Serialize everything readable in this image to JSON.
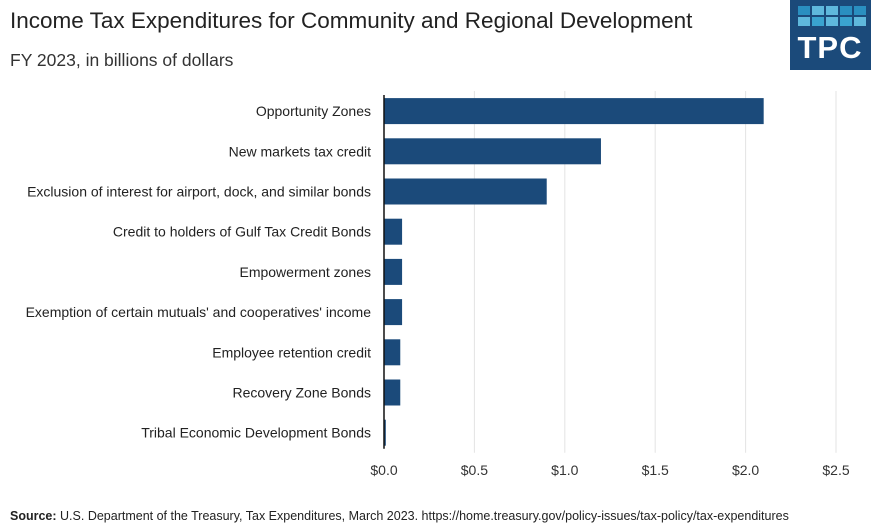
{
  "header": {
    "title": "Income Tax Expenditures for Community and Regional Development",
    "subtitle": "FY 2023, in billions of dollars",
    "logo_text": "TPC"
  },
  "footer": {
    "source_label": "Source:",
    "source_text": "U.S. Department of the Treasury, Tax Expenditures, March 2023. https://home.treasury.gov/policy-issues/tax-policy/tax-expenditures"
  },
  "colors": {
    "bar": "#1b4a7a",
    "grid": "#e3e3e3",
    "logo_bg": "#1b4a7a"
  },
  "chart_data": {
    "type": "bar",
    "orientation": "horizontal",
    "title": "Income Tax Expenditures for Community and Regional Development",
    "subtitle": "FY 2023, in billions of dollars",
    "categories": [
      "Opportunity Zones",
      "New markets tax credit",
      "Exclusion of interest for airport, dock, and similar bonds",
      "Credit to holders of Gulf Tax Credit Bonds",
      "Empowerment zones",
      "Exemption of certain mutuals' and cooperatives' income",
      "Employee retention credit",
      "Recovery Zone Bonds",
      "Tribal Economic Development Bonds"
    ],
    "values": [
      2.1,
      1.2,
      0.9,
      0.1,
      0.1,
      0.1,
      0.09,
      0.09,
      0.01
    ],
    "xlim": [
      0,
      2.5
    ],
    "xticks": [
      0,
      0.5,
      1.0,
      1.5,
      2.0,
      2.5
    ],
    "xtick_labels": [
      "$0.0",
      "$0.5",
      "$1.0",
      "$1.5",
      "$2.0",
      "$2.5"
    ],
    "xlabel": "",
    "ylabel": "",
    "grid": "vertical"
  }
}
